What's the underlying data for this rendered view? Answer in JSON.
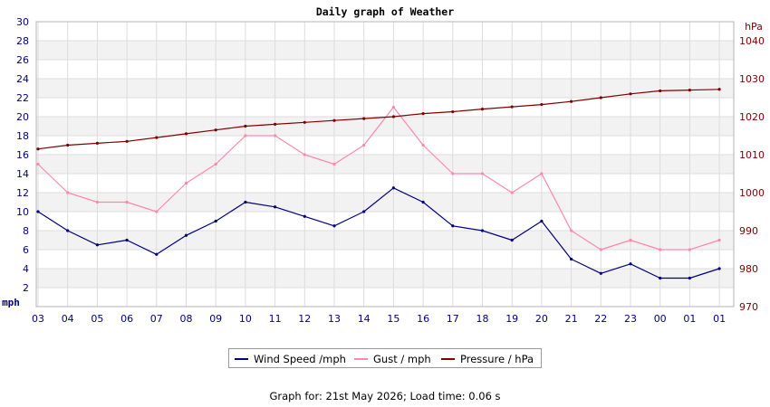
{
  "chart_data": {
    "type": "line",
    "title": "Daily graph of Weather",
    "left_axis": {
      "unit": "mph",
      "ylim": [
        0,
        30
      ],
      "ticks": [
        "2",
        "4",
        "6",
        "8",
        "10",
        "12",
        "14",
        "16",
        "18",
        "20",
        "22",
        "24",
        "26",
        "28",
        "30"
      ]
    },
    "right_axis": {
      "unit": "hPa",
      "ylim": [
        970,
        1045
      ],
      "ticks": [
        "970",
        "980",
        "990",
        "1000",
        "1010",
        "1020",
        "1030",
        "1040"
      ]
    },
    "x_tick_labels": [
      "03",
      "04",
      "05",
      "06",
      "07",
      "08",
      "09",
      "10",
      "11",
      "12",
      "13",
      "14",
      "15",
      "16",
      "17",
      "18",
      "19",
      "20",
      "21",
      "22",
      "23",
      "00",
      "01",
      "01"
    ],
    "grid": true,
    "legend_position": "bottom",
    "series": [
      {
        "name": "Wind Speed /mph",
        "axis": "left",
        "color": "#000080",
        "x": [
          "03",
          "04",
          "05",
          "06",
          "07",
          "08",
          "09",
          "10",
          "11",
          "12",
          "13",
          "14",
          "15",
          "16",
          "17",
          "18",
          "19",
          "20",
          "21",
          "22",
          "23",
          "00",
          "01",
          "01"
        ],
        "values": [
          10,
          8,
          6.5,
          7,
          5.5,
          7.5,
          9,
          11,
          10.5,
          9.5,
          8.5,
          10,
          12.5,
          11,
          8.5,
          8,
          7,
          9,
          5,
          3.5,
          4.5,
          3,
          3,
          4
        ]
      },
      {
        "name": "Gust / mph",
        "axis": "left",
        "color": "#ff88aa",
        "x": [
          "03",
          "04",
          "05",
          "06",
          "07",
          "08",
          "09",
          "10",
          "11",
          "12",
          "13",
          "14",
          "15",
          "16",
          "17",
          "18",
          "19",
          "20",
          "21",
          "22",
          "23",
          "00",
          "01",
          "01"
        ],
        "values": [
          15,
          12,
          11,
          11,
          10,
          13,
          15,
          18,
          18,
          16,
          15,
          17,
          21,
          17,
          14,
          14,
          12,
          14,
          8,
          6,
          7,
          6,
          6,
          7
        ]
      },
      {
        "name": "Pressure / hPa",
        "axis": "right",
        "color": "#800000",
        "x": [
          "03",
          "04",
          "05",
          "06",
          "07",
          "08",
          "09",
          "10",
          "11",
          "12",
          "13",
          "14",
          "15",
          "16",
          "17",
          "18",
          "19",
          "20",
          "21",
          "22",
          "23",
          "00",
          "01",
          "01"
        ],
        "values": [
          1011.5,
          1012.5,
          1013,
          1013.5,
          1014.5,
          1015.5,
          1016.5,
          1017.5,
          1018,
          1018.5,
          1019,
          1019.5,
          1020,
          1020.8,
          1021.3,
          1022,
          1022.6,
          1023.2,
          1024,
          1025,
          1026,
          1026.8,
          1027,
          1027.2
        ]
      }
    ]
  },
  "footer": "Graph for: 21st May 2026; Load time: 0.06 s"
}
